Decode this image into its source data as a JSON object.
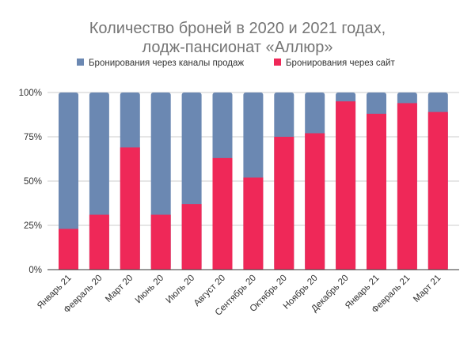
{
  "chart_data": {
    "type": "bar",
    "stacked": true,
    "percent": true,
    "title": [
      "Количество броней в 2020 и 2021 годах,",
      "лодж-пансионат «Аллюр»"
    ],
    "xlabel": "",
    "ylabel": "",
    "ylim": [
      0,
      100
    ],
    "yticks": [
      "0%",
      "25%",
      "50%",
      "75%",
      "100%"
    ],
    "grid": true,
    "legend_position": "top",
    "categories": [
      "Январь 21",
      "Февраль 20",
      "Март 20",
      "Июнь 20",
      "Июль 20",
      "Август 20",
      "Сентябрь 20",
      "Октябрь 20",
      "Ноябрь 20",
      "Декабрь 20",
      "Январь 21",
      "Февраль 21",
      "Март 21"
    ],
    "series": [
      {
        "name": "Бронирования через каналы продаж",
        "color": "#6b88b2",
        "values": [
          77,
          69,
          31,
          69,
          63,
          37,
          48,
          25,
          23,
          5,
          12,
          6,
          11
        ]
      },
      {
        "name": "Бронирования через сайт",
        "color": "#ef2858",
        "values": [
          23,
          31,
          69,
          31,
          37,
          63,
          52,
          75,
          77,
          95,
          88,
          94,
          89
        ]
      }
    ]
  }
}
